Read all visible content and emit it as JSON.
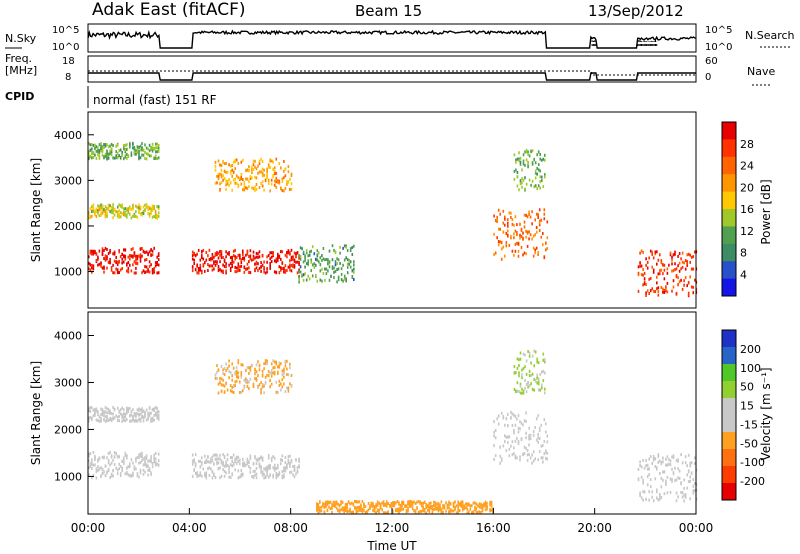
{
  "header": {
    "title": "Adak East (fitACF)",
    "beam": "Beam 15",
    "date": "13/Sep/2012"
  },
  "left_labels": {
    "nsky": "N.Sky",
    "freq": "Freq.",
    "mhz": "[MHz]",
    "cpid": "CPID"
  },
  "right_labels": {
    "nsearch": "N.Search",
    "nave": "Nave"
  },
  "cpid_text": "normal (fast) 151 RF",
  "noise_axis": {
    "left_ticks": [
      "10^5",
      "10^0"
    ],
    "right_ticks": [
      "10^5",
      "10^0"
    ]
  },
  "freq_axis": {
    "left_ticks": [
      "18",
      "8"
    ],
    "right_ticks": [
      "60",
      "0"
    ]
  },
  "colors": {
    "power": [
      "#1414e6",
      "#2850c8",
      "#3c8c64",
      "#50a050",
      "#a0c828",
      "#ffc800",
      "#ff9600",
      "#ff6400",
      "#ff3200",
      "#e60000"
    ],
    "velocity": [
      "#1e32c8",
      "#2864c8",
      "#50c828",
      "#90d030",
      "#c8c8c8",
      "#c8c8c8",
      "#ffa020",
      "#ff7010",
      "#ff3c00",
      "#e60000"
    ]
  },
  "chart_data": [
    {
      "type": "heatmap",
      "panel": "power",
      "ylabel": "Slant Range [km]",
      "ylim": [
        200,
        4500
      ],
      "yticks": [
        1000,
        2000,
        3000,
        4000
      ],
      "xlim": [
        0,
        24
      ],
      "colorbar": {
        "label": "Power [dB]",
        "ticks": [
          "28",
          "24",
          "20",
          "16",
          "12",
          "8",
          "4"
        ],
        "range": [
          0,
          32
        ]
      },
      "data_gaps_hours": [
        [
          2.8,
          4.1
        ],
        [
          18.1,
          19.85
        ],
        [
          20.1,
          21.7
        ]
      ],
      "echo_regions": [
        {
          "t_start": 0.0,
          "t_end": 2.8,
          "range_km": [
            1000,
            1550
          ],
          "level_db": 30
        },
        {
          "t_start": 0.0,
          "t_end": 2.8,
          "range_km": [
            2200,
            2500
          ],
          "level_db": 16
        },
        {
          "t_start": 0.0,
          "t_end": 2.8,
          "range_km": [
            3500,
            3850
          ],
          "level_db": 12
        },
        {
          "t_start": 4.1,
          "t_end": 8.3,
          "range_km": [
            1000,
            1500
          ],
          "level_db": 30
        },
        {
          "t_start": 5.0,
          "t_end": 8.0,
          "range_km": [
            2800,
            3500
          ],
          "level_db": 20
        },
        {
          "t_start": 8.3,
          "t_end": 10.5,
          "range_km": [
            800,
            1600
          ],
          "level_db": 10
        },
        {
          "t_start": 16.0,
          "t_end": 18.1,
          "range_km": [
            1300,
            2400
          ],
          "level_db": 24
        },
        {
          "t_start": 16.8,
          "t_end": 18.0,
          "range_km": [
            2800,
            3700
          ],
          "level_db": 12
        },
        {
          "t_start": 21.7,
          "t_end": 24.0,
          "range_km": [
            500,
            1500
          ],
          "level_db": 28
        }
      ]
    },
    {
      "type": "heatmap",
      "panel": "velocity",
      "ylabel": "Slant Range [km]",
      "ylim": [
        200,
        4500
      ],
      "yticks": [
        1000,
        2000,
        3000,
        4000
      ],
      "xlim": [
        0,
        24
      ],
      "xlabel": "Time UT",
      "xticks": [
        "00:00",
        "04:00",
        "08:00",
        "12:00",
        "16:00",
        "20:00",
        "00:00"
      ],
      "colorbar": {
        "label": "Velocity [m s⁻¹]",
        "ticks": [
          "200",
          "100",
          "50",
          "15",
          "-15",
          "-50",
          "-100",
          "-200"
        ],
        "range": [
          -250,
          250
        ]
      },
      "echo_regions": [
        {
          "t_start": 0.0,
          "t_end": 2.8,
          "range_km": [
            1000,
            1550
          ],
          "velocity": 0
        },
        {
          "t_start": 0.0,
          "t_end": 2.8,
          "range_km": [
            2200,
            2500
          ],
          "velocity": 5
        },
        {
          "t_start": 4.1,
          "t_end": 8.3,
          "range_km": [
            1000,
            1500
          ],
          "velocity": -5
        },
        {
          "t_start": 5.0,
          "t_end": 8.0,
          "range_km": [
            2800,
            3500
          ],
          "velocity": -60
        },
        {
          "t_start": 9.0,
          "t_end": 16.0,
          "range_km": [
            250,
            500
          ],
          "velocity": -70
        },
        {
          "t_start": 16.0,
          "t_end": 18.1,
          "range_km": [
            1300,
            2400
          ],
          "velocity": 0
        },
        {
          "t_start": 16.8,
          "t_end": 18.0,
          "range_km": [
            2800,
            3700
          ],
          "velocity": 60
        },
        {
          "t_start": 21.7,
          "t_end": 24.0,
          "range_km": [
            500,
            1500
          ],
          "velocity": 0
        }
      ]
    }
  ]
}
